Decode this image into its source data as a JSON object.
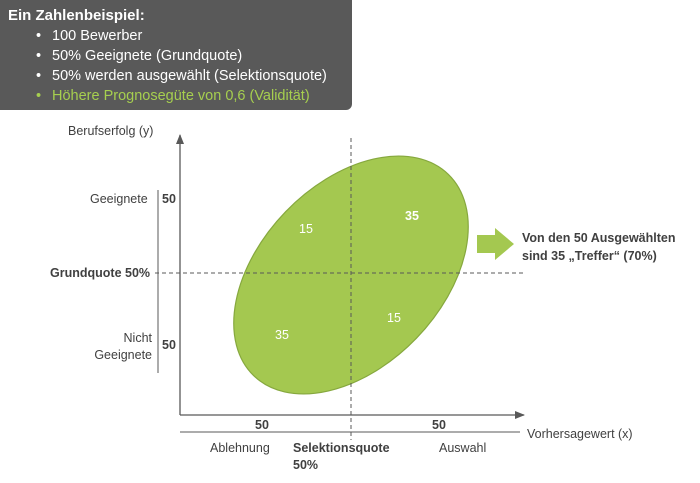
{
  "info_box": {
    "title": "Ein Zahlenbeispiel:",
    "items": [
      {
        "text": "100 Bewerber",
        "highlight": false
      },
      {
        "text": "50% Geeignete (Grundquote)",
        "highlight": false
      },
      {
        "text": "50% werden ausgewählt (Selektionsquote)",
        "highlight": false
      },
      {
        "text": "Höhere Prognosegüte von 0,6 (Validität)",
        "highlight": true
      }
    ],
    "bullet": "•"
  },
  "diagram": {
    "y_axis_label": "Berufserfolg (y)",
    "x_axis_label": "Vorhersagewert (x)",
    "y_upper_label": "Geeignete",
    "y_upper_value": "50",
    "y_lower_label_line1": "Nicht",
    "y_lower_label_line2": "Geeignete",
    "y_lower_value": "50",
    "threshold_y_label": "Grundquote 50%",
    "x_left_value": "50",
    "x_right_value": "50",
    "x_left_label": "Ablehnung",
    "x_right_label": "Auswahl",
    "threshold_x_label_line1": "Selektionsquote",
    "threshold_x_label_line2": "50%",
    "quadrants": {
      "top_left": "15",
      "top_right": "35",
      "bottom_left": "35",
      "bottom_right": "15"
    },
    "callout_line1": "Von den 50 Ausgewählten",
    "callout_line2": "sind 35 „Treffer“ (70%)",
    "colors": {
      "ellipse_fill": "#a4c850",
      "ellipse_stroke": "#7fa238",
      "arrow_fill": "#a4c850",
      "axis": "#595959",
      "info_box_bg": "#595959",
      "highlight_text": "#a6cf4f"
    }
  }
}
